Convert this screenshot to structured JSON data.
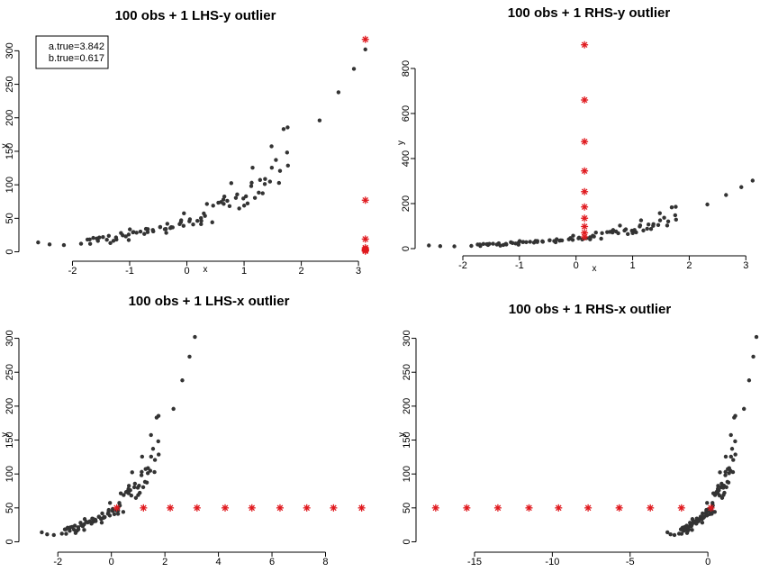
{
  "colors": {
    "points": "#333333",
    "outlier": "#e0191e",
    "axis": "#000000"
  },
  "chart_data": [
    {
      "type": "scatter",
      "title": "100 obs + 1 LHS-y outlier",
      "xlabel": "x",
      "ylabel": "y",
      "xlim": [
        -2.7,
        3.25
      ],
      "ylim": [
        -6,
        322
      ],
      "xticks": [
        -2,
        -1,
        0,
        1,
        2,
        3
      ],
      "yticks": [
        0,
        50,
        100,
        150,
        200,
        250,
        300
      ],
      "legend": {
        "placement": "top-left",
        "lines": [
          "a.true=3.842",
          "b.true=0.617"
        ]
      },
      "outliers": [
        [
          3.12,
          317
        ],
        [
          3.12,
          77
        ],
        [
          3.12,
          19
        ],
        [
          3.12,
          6
        ],
        [
          3.12,
          4
        ],
        [
          3.12,
          3
        ],
        [
          3.12,
          2
        ],
        [
          3.12,
          1.5
        ],
        [
          3.12,
          1
        ]
      ]
    },
    {
      "type": "scatter",
      "title": "100 obs + 1 RHS-y outlier",
      "xlabel": "x",
      "ylabel": "y",
      "xlim": [
        -2.7,
        3.25
      ],
      "ylim": [
        -20,
        960
      ],
      "xticks": [
        -2,
        -1,
        0,
        1,
        2,
        3
      ],
      "yticks": [
        0,
        200,
        400,
        600,
        800
      ],
      "outliers": [
        [
          0.15,
          905
        ],
        [
          0.15,
          660
        ],
        [
          0.15,
          475
        ],
        [
          0.15,
          345
        ],
        [
          0.15,
          253
        ],
        [
          0.15,
          185
        ],
        [
          0.15,
          135
        ],
        [
          0.15,
          98
        ],
        [
          0.15,
          70
        ],
        [
          0.15,
          52
        ]
      ]
    },
    {
      "type": "scatter",
      "title": "100 obs + 1 LHS-x outlier",
      "xlabel": "x",
      "ylabel": "y",
      "xlim": [
        -2.95,
        9.8
      ],
      "ylim": [
        -6,
        322
      ],
      "xticks": [
        -2,
        0,
        2,
        4,
        6,
        8
      ],
      "yticks": [
        0,
        50,
        100,
        150,
        200,
        250,
        300
      ],
      "outliers": [
        [
          0.2,
          50
        ],
        [
          1.2,
          50
        ],
        [
          2.2,
          50
        ],
        [
          3.2,
          50
        ],
        [
          4.25,
          50
        ],
        [
          5.25,
          50
        ],
        [
          6.3,
          50
        ],
        [
          7.3,
          50
        ],
        [
          8.3,
          50
        ],
        [
          9.35,
          50
        ]
      ]
    },
    {
      "type": "scatter",
      "title": "100 obs + 1 RHS-x outlier",
      "xlabel": "x",
      "ylabel": "y",
      "xlim": [
        -18.3,
        3.35
      ],
      "ylim": [
        -6,
        322
      ],
      "xticks": [
        -15,
        -10,
        -5,
        0
      ],
      "yticks": [
        0,
        50,
        100,
        150,
        200,
        250,
        300
      ],
      "outliers": [
        [
          -17.5,
          50
        ],
        [
          -15.5,
          50
        ],
        [
          -13.5,
          50
        ],
        [
          -11.5,
          50
        ],
        [
          -9.6,
          50
        ],
        [
          -7.7,
          50
        ],
        [
          -5.7,
          50
        ],
        [
          -3.7,
          50
        ],
        [
          -1.7,
          50
        ],
        [
          0.2,
          50
        ]
      ]
    }
  ]
}
